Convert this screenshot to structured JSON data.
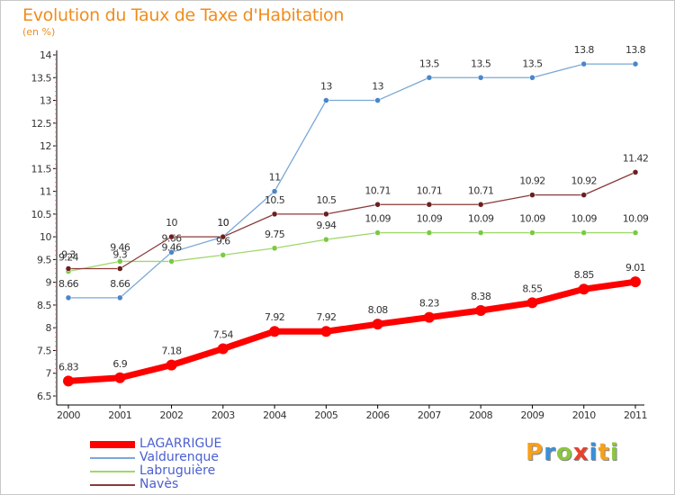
{
  "title": "Evolution du Taux de Taxe d'Habitation",
  "subtitle": "(en %)",
  "brand": {
    "letters": [
      "P",
      "r",
      "o",
      "x",
      "i",
      "t",
      "i"
    ],
    "colors": [
      "#f7a11a",
      "#3a8fd8",
      "#8cc63f",
      "#e8412c",
      "#3a8fd8",
      "#f7a11a",
      "#8cc63f"
    ]
  },
  "chart_data": {
    "type": "line",
    "x": [
      2000,
      2001,
      2002,
      2003,
      2004,
      2005,
      2006,
      2007,
      2008,
      2009,
      2010,
      2011
    ],
    "ylim": [
      6.5,
      14
    ],
    "yticks": [
      6.5,
      7,
      7.5,
      8,
      8.5,
      9,
      9.5,
      10,
      10.5,
      11,
      11.5,
      12,
      12.5,
      13,
      13.5,
      14
    ],
    "ytick_labels": [
      "6.5",
      "7",
      "7.5",
      "8",
      "8.5",
      "9",
      "9.5",
      "10",
      "10.5",
      "11",
      "11.5",
      "12",
      "12.5",
      "13",
      "13.5",
      "14"
    ],
    "grid": false,
    "legend_position": "bottom-left",
    "series": [
      {
        "name": "Valdurenque",
        "color": "#7aa7d6",
        "dot": "#4a86c8",
        "values": [
          8.66,
          8.66,
          9.66,
          10,
          11,
          13,
          13,
          13.5,
          13.5,
          13.5,
          13.8,
          13.8
        ],
        "labels": [
          "8.66",
          "8.66",
          "9.66",
          "10",
          "11",
          "13",
          "13",
          "13.5",
          "13.5",
          "13.5",
          "13.8",
          "13.8"
        ]
      },
      {
        "name": "Labruguière",
        "color": "#9fd86b",
        "dot": "#7ac943",
        "values": [
          9.24,
          9.46,
          9.46,
          9.6,
          9.75,
          9.94,
          10.09,
          10.09,
          10.09,
          10.09,
          10.09,
          10.09
        ],
        "labels": [
          "9.24",
          "9.46",
          "9.46",
          "9.6",
          "9.75",
          "9.94",
          "10.09",
          "10.09",
          "10.09",
          "10.09",
          "10.09",
          "10.09"
        ]
      },
      {
        "name": "Navès",
        "color": "#8a3a3a",
        "dot": "#6b1f1f",
        "values": [
          9.3,
          9.3,
          10,
          10,
          10.5,
          10.5,
          10.71,
          10.71,
          10.71,
          10.92,
          10.92,
          11.42
        ],
        "labels": [
          "9.3",
          "9.3",
          "10",
          "10",
          "10.5",
          "10.5",
          "10.71",
          "10.71",
          "10.71",
          "10.92",
          "10.92",
          "11.42"
        ]
      },
      {
        "name": "LAGARRIGUE",
        "color": "#ff0000",
        "dot": "#ff0000",
        "values": [
          6.83,
          6.9,
          7.18,
          7.54,
          7.92,
          7.92,
          8.08,
          8.23,
          8.38,
          8.55,
          8.85,
          9.01
        ],
        "labels": [
          "6.83",
          "6.9",
          "7.18",
          "7.54",
          "7.92",
          "7.92",
          "8.08",
          "8.23",
          "8.38",
          "8.55",
          "8.85",
          "9.01"
        ]
      }
    ],
    "legend": [
      "LAGARRIGUE",
      "Valdurenque",
      "Labruguière",
      "Navès"
    ]
  }
}
